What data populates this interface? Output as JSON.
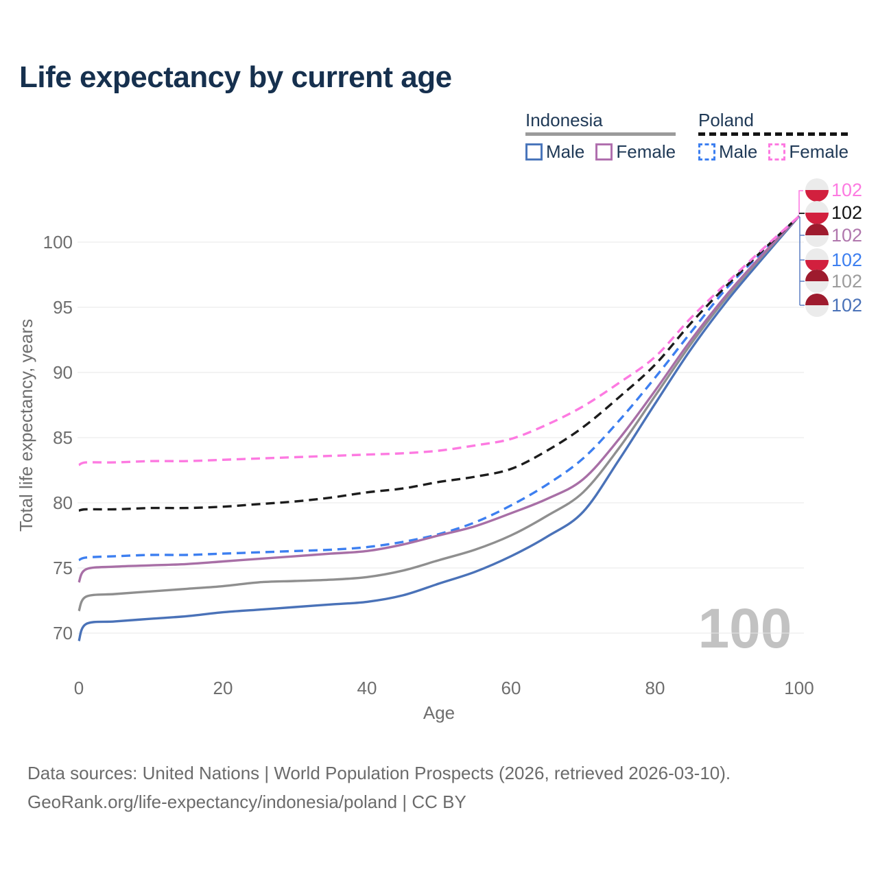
{
  "title": "Life expectancy by current age",
  "legend": {
    "groups": [
      {
        "label": "Indonesia",
        "line_style": "solid",
        "underline_color": "#9b9b9b",
        "items": [
          {
            "label": "Male",
            "color": "#4a76bb"
          },
          {
            "label": "Female",
            "color": "#b06fae"
          }
        ]
      },
      {
        "label": "Poland",
        "line_style": "dashed",
        "underline_color": "#141414",
        "items": [
          {
            "label": "Male",
            "color": "#3d7ff0"
          },
          {
            "label": "Female",
            "color": "#fd7ae1"
          }
        ]
      }
    ]
  },
  "flag_colors": {
    "indonesia_red": "#9e1b2e",
    "poland_red": "#d2203e",
    "flag_light": "#ebebeb"
  },
  "watermark": "100",
  "chart_data": {
    "type": "line",
    "title": "Life expectancy by current age",
    "xlabel": "Age",
    "ylabel": "Total life expectancy, years",
    "x_ticks": [
      0,
      20,
      40,
      60,
      80,
      100
    ],
    "y_ticks": [
      70,
      75,
      80,
      85,
      90,
      95,
      100
    ],
    "xlim": [
      0,
      100
    ],
    "ylim": [
      68.5,
      103.5
    ],
    "grid": "horizontal-only",
    "legend_position": "top-right",
    "x": [
      0,
      1,
      5,
      10,
      15,
      20,
      25,
      30,
      35,
      40,
      45,
      50,
      55,
      60,
      65,
      70,
      75,
      80,
      85,
      90,
      95,
      100
    ],
    "series": [
      {
        "name": "Poland — Female",
        "country": "Poland",
        "sex": "Female",
        "color": "#fd7ae1",
        "label_color": "#fd7ae1",
        "dash": "dashed",
        "flag": "poland",
        "end_label": "102",
        "values": [
          82.9,
          83.1,
          83.1,
          83.2,
          83.2,
          83.3,
          83.4,
          83.5,
          83.6,
          83.7,
          83.8,
          84.0,
          84.4,
          84.9,
          86.0,
          87.4,
          89.2,
          91.2,
          94.2,
          96.9,
          99.5,
          102
        ]
      },
      {
        "name": "Poland — Both sexes",
        "country": "Poland",
        "sex": "Both sexes",
        "color": "#1c1c1c",
        "label_color": "#141414",
        "dash": "dashed",
        "flag": "poland",
        "end_label": "102",
        "values": [
          79.4,
          79.5,
          79.5,
          79.6,
          79.6,
          79.7,
          79.9,
          80.1,
          80.4,
          80.8,
          81.1,
          81.6,
          82.0,
          82.6,
          84.0,
          85.8,
          88.1,
          90.6,
          93.8,
          96.7,
          99.4,
          102
        ]
      },
      {
        "name": "Indonesia — Female",
        "country": "Indonesia",
        "sex": "Female",
        "color": "#a86fa6",
        "label_color": "#b077ad",
        "dash": "solid",
        "flag": "indonesia",
        "end_label": "102",
        "values": [
          73.9,
          74.9,
          75.1,
          75.2,
          75.3,
          75.5,
          75.7,
          75.9,
          76.1,
          76.3,
          76.8,
          77.5,
          78.2,
          79.2,
          80.3,
          81.8,
          84.9,
          88.6,
          92.5,
          96.0,
          99.1,
          102
        ]
      },
      {
        "name": "Poland — Male",
        "country": "Poland",
        "sex": "Male",
        "color": "#3d7ff0",
        "label_color": "#3d7ff0",
        "dash": "dashed",
        "flag": "poland",
        "end_label": "102",
        "values": [
          75.6,
          75.8,
          75.9,
          76.0,
          76.0,
          76.1,
          76.2,
          76.3,
          76.4,
          76.6,
          77.0,
          77.6,
          78.5,
          79.8,
          81.4,
          83.4,
          86.3,
          89.6,
          93.1,
          96.5,
          99.3,
          102
        ]
      },
      {
        "name": "Indonesia — Both sexes",
        "country": "Indonesia",
        "sex": "Both sexes",
        "color": "#8f8f8f",
        "label_color": "#9c9c9c",
        "dash": "solid",
        "flag": "indonesia",
        "end_label": "102",
        "values": [
          71.7,
          72.8,
          73.0,
          73.2,
          73.4,
          73.6,
          73.9,
          74.0,
          74.1,
          74.3,
          74.8,
          75.6,
          76.4,
          77.5,
          79.0,
          80.8,
          84.2,
          88.2,
          92.2,
          95.8,
          99.0,
          102
        ]
      },
      {
        "name": "Indonesia — Male",
        "country": "Indonesia",
        "sex": "Male",
        "color": "#4a72b8",
        "label_color": "#4a72b8",
        "dash": "solid",
        "flag": "indonesia",
        "end_label": "102",
        "values": [
          69.4,
          70.7,
          70.9,
          71.1,
          71.3,
          71.6,
          71.8,
          72.0,
          72.2,
          72.4,
          72.9,
          73.8,
          74.7,
          75.9,
          77.4,
          79.3,
          83.3,
          87.6,
          91.8,
          95.5,
          98.8,
          102
        ]
      }
    ]
  },
  "footer": {
    "line1": "Data sources: United Nations | World Population Prospects (2026, retrieved 2026-03-10).",
    "line2": "GeoRank.org/life-expectancy/indonesia/poland | CC BY"
  }
}
